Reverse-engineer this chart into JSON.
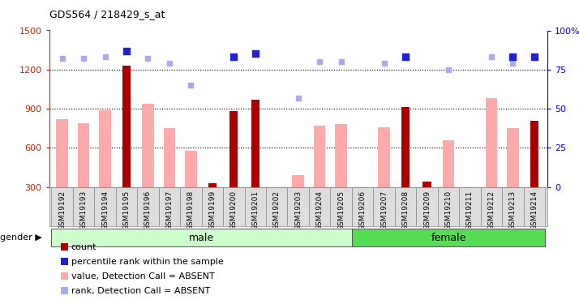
{
  "title": "GDS564 / 218429_s_at",
  "samples": [
    "GSM19192",
    "GSM19193",
    "GSM19194",
    "GSM19195",
    "GSM19196",
    "GSM19197",
    "GSM19198",
    "GSM19199",
    "GSM19200",
    "GSM19201",
    "GSM19202",
    "GSM19203",
    "GSM19204",
    "GSM19205",
    "GSM19206",
    "GSM19207",
    "GSM19208",
    "GSM19209",
    "GSM19210",
    "GSM19211",
    "GSM19212",
    "GSM19213",
    "GSM19214"
  ],
  "gender": [
    "male",
    "male",
    "male",
    "male",
    "male",
    "male",
    "male",
    "male",
    "male",
    "male",
    "male",
    "male",
    "male",
    "male",
    "female",
    "female",
    "female",
    "female",
    "female",
    "female",
    "female",
    "female",
    "female"
  ],
  "value_absent": [
    820,
    790,
    890,
    null,
    940,
    750,
    580,
    null,
    null,
    null,
    null,
    390,
    770,
    780,
    null,
    760,
    null,
    null,
    660,
    null,
    980,
    750,
    null
  ],
  "count_values": [
    null,
    null,
    null,
    1230,
    null,
    null,
    null,
    330,
    880,
    970,
    null,
    null,
    null,
    null,
    null,
    null,
    910,
    340,
    null,
    null,
    null,
    null,
    810
  ],
  "rank_absent": [
    82,
    82,
    83,
    null,
    82,
    79,
    65,
    null,
    null,
    null,
    null,
    57,
    80,
    80,
    null,
    79,
    null,
    null,
    75,
    null,
    83,
    79,
    null
  ],
  "percentile_rank": [
    null,
    null,
    null,
    87,
    null,
    null,
    null,
    null,
    83,
    85,
    null,
    null,
    null,
    null,
    null,
    null,
    83,
    null,
    null,
    null,
    null,
    83,
    83
  ],
  "ylim_left": [
    300,
    1500
  ],
  "ylim_right": [
    0,
    100
  ],
  "yticks_left": [
    300,
    600,
    900,
    1200,
    1500
  ],
  "yticks_right": [
    0,
    25,
    50,
    75,
    100
  ],
  "left_axis_color": "#cc2200",
  "absent_bar_color": "#ffaaaa",
  "absent_dot_color": "#aaaaee",
  "percentile_dot_color": "#2222cc",
  "count_bar_color": "#aa0000",
  "male_color": "#ccffcc",
  "female_color": "#55dd55",
  "label_bg_color": "#dddddd",
  "bg_color": "#ffffff"
}
